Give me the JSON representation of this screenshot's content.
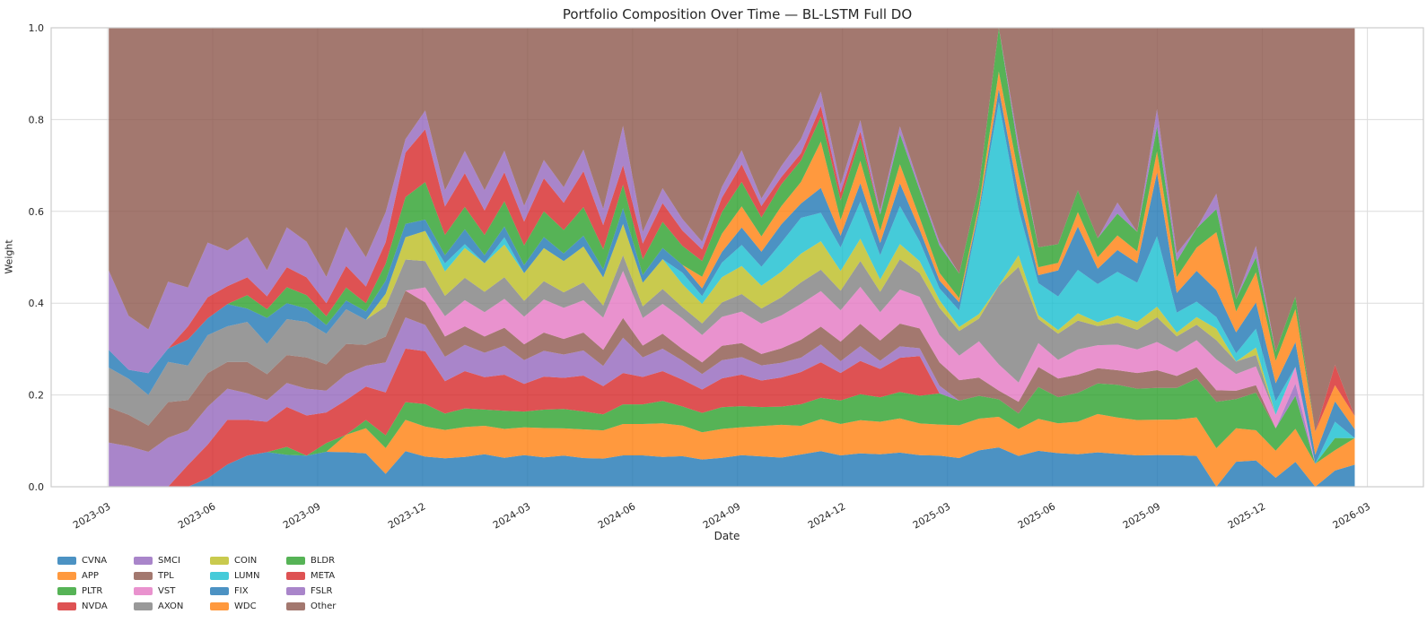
{
  "figure": {
    "title": "Portfolio Composition Over Time — BL-LSTM Full DO",
    "background_color": "#ffffff",
    "grid_color": "#dcdcdc",
    "spine_color": "#cccccc",
    "text_color": "#262626"
  },
  "chart_data": {
    "type": "area",
    "stacked": true,
    "stacked_total": 1.0,
    "title": "Portfolio Composition Over Time — BL-LSTM Full DO",
    "xlabel": "Date",
    "ylabel": "Weight",
    "grid": true,
    "legend_position": "below-left",
    "fill_alpha": 0.8,
    "ylim": [
      0.0,
      1.0
    ],
    "y_ticks": [
      "0.0",
      "0.2",
      "0.4",
      "0.6",
      "0.8",
      "1.0"
    ],
    "x_tick_labels": [
      "2023-03",
      "2023-06",
      "2023-09",
      "2023-12",
      "2024-03",
      "2024-06",
      "2024-09",
      "2024-12",
      "2025-03",
      "2025-06",
      "2025-09",
      "2025-12",
      "2026-03"
    ],
    "x_range": {
      "start": "2023-03",
      "end": "2026-02",
      "points": 64,
      "frequency": "approx. 2.5 weeks"
    },
    "series": [
      {
        "name": "CVNA",
        "color": "#1f77b4",
        "values": [
          0,
          0,
          0,
          0,
          0,
          0.02,
          0.05,
          0.07,
          0.08,
          0.08,
          0.07,
          0.08,
          0.08,
          0.08,
          0.03,
          0.08,
          0.08,
          0.07,
          0.08,
          0.08,
          0.08,
          0.08,
          0.08,
          0.08,
          0.08,
          0.07,
          0.08,
          0.08,
          0.08,
          0.08,
          0.07,
          0.08,
          0.09,
          0.08,
          0.08,
          0.09,
          0.1,
          0.08,
          0.09,
          0.08,
          0.09,
          0.08,
          0.08,
          0.07,
          0.08,
          0.09,
          0.08,
          0.09,
          0.09,
          0.09,
          0.09,
          0.09,
          0.08,
          0.09,
          0.08,
          0.08,
          0,
          0.06,
          0.07,
          0.02,
          0.06,
          0,
          0.04,
          0.05
        ]
      },
      {
        "name": "APP",
        "color": "#ff7f0e",
        "values": [
          0,
          0,
          0,
          0,
          0,
          0,
          0,
          0,
          0,
          0,
          0,
          0,
          0.04,
          0.06,
          0.06,
          0.07,
          0.08,
          0.07,
          0.08,
          0.07,
          0.08,
          0.07,
          0.08,
          0.07,
          0.08,
          0.07,
          0.08,
          0.08,
          0.09,
          0.08,
          0.07,
          0.08,
          0.08,
          0.08,
          0.09,
          0.08,
          0.09,
          0.08,
          0.09,
          0.08,
          0.09,
          0.08,
          0.08,
          0.08,
          0.07,
          0.07,
          0.07,
          0.08,
          0.08,
          0.09,
          0.1,
          0.1,
          0.09,
          0.1,
          0.09,
          0.1,
          0.1,
          0.08,
          0.08,
          0.06,
          0.08,
          0.05,
          0.05,
          0.06
        ]
      },
      {
        "name": "PLTR",
        "color": "#2ca02c",
        "values": [
          0,
          0,
          0,
          0,
          0,
          0,
          0,
          0,
          0,
          0.02,
          0,
          0.02,
          0,
          0.02,
          0.03,
          0.04,
          0.06,
          0.04,
          0.05,
          0.04,
          0.05,
          0.04,
          0.05,
          0.05,
          0.05,
          0.04,
          0.05,
          0.05,
          0.06,
          0.05,
          0.05,
          0.06,
          0.06,
          0.05,
          0.05,
          0.06,
          0.06,
          0.06,
          0.07,
          0.06,
          0.07,
          0.07,
          0.08,
          0.06,
          0.05,
          0.04,
          0.04,
          0.08,
          0.07,
          0.08,
          0.08,
          0.09,
          0.08,
          0.09,
          0.08,
          0.1,
          0.12,
          0.07,
          0.1,
          0.05,
          0.08,
          0,
          0.03,
          0
        ]
      },
      {
        "name": "NVDA",
        "color": "#d62728",
        "values": [
          0,
          0,
          0,
          0,
          0.05,
          0.08,
          0.1,
          0.08,
          0.07,
          0.1,
          0.09,
          0.07,
          0.08,
          0.08,
          0.1,
          0.12,
          0.14,
          0.08,
          0.1,
          0.08,
          0.1,
          0.07,
          0.09,
          0.08,
          0.1,
          0.07,
          0.08,
          0.07,
          0.08,
          0.07,
          0.06,
          0.08,
          0.09,
          0.07,
          0.08,
          0.09,
          0.1,
          0.07,
          0.09,
          0.07,
          0.09,
          0.1,
          0,
          0,
          0,
          0,
          0,
          0,
          0,
          0,
          0,
          0,
          0,
          0,
          0,
          0,
          0,
          0,
          0,
          0,
          0,
          0,
          0,
          0
        ]
      },
      {
        "name": "SMCI",
        "color": "#9467bd",
        "values": [
          0.1,
          0.09,
          0.08,
          0.11,
          0.08,
          0.09,
          0.07,
          0.06,
          0.05,
          0.06,
          0.06,
          0.05,
          0.06,
          0.05,
          0.07,
          0.07,
          0.07,
          0.06,
          0.07,
          0.06,
          0.08,
          0.06,
          0.07,
          0.06,
          0.07,
          0.05,
          0.09,
          0.05,
          0.06,
          0.05,
          0.04,
          0.05,
          0.05,
          0.04,
          0.04,
          0.04,
          0.05,
          0.03,
          0.04,
          0.02,
          0.03,
          0.02,
          0.02,
          0,
          0,
          0,
          0,
          0,
          0,
          0,
          0,
          0,
          0,
          0,
          0,
          0,
          0,
          0,
          0,
          0,
          0.03,
          0,
          0,
          0
        ]
      },
      {
        "name": "TPL",
        "color": "#8c564b",
        "values": [
          0.08,
          0.07,
          0.06,
          0.08,
          0.07,
          0.08,
          0.06,
          0.07,
          0.06,
          0.07,
          0.07,
          0.06,
          0.07,
          0.05,
          0.06,
          0.06,
          0.06,
          0.05,
          0.05,
          0.04,
          0.05,
          0.04,
          0.05,
          0.04,
          0.05,
          0.04,
          0.05,
          0.03,
          0.04,
          0.03,
          0.03,
          0.04,
          0.04,
          0.03,
          0.04,
          0.05,
          0.05,
          0.05,
          0.06,
          0.05,
          0.06,
          0.05,
          0.06,
          0.05,
          0.04,
          0.02,
          0.03,
          0.05,
          0.05,
          0.05,
          0.04,
          0.04,
          0.04,
          0.05,
          0.03,
          0.03,
          0.03,
          0.02,
          0.02,
          0,
          0,
          0,
          0,
          0
        ]
      },
      {
        "name": "VST",
        "color": "#e377c2",
        "values": [
          0,
          0,
          0,
          0,
          0,
          0,
          0,
          0,
          0,
          0,
          0,
          0,
          0,
          0,
          0,
          0,
          0.04,
          0.05,
          0.07,
          0.06,
          0.08,
          0.07,
          0.09,
          0.08,
          0.09,
          0.08,
          0.12,
          0.07,
          0.08,
          0.08,
          0.07,
          0.08,
          0.09,
          0.08,
          0.09,
          0.1,
          0.1,
          0.08,
          0.1,
          0.07,
          0.09,
          0.08,
          0.07,
          0.06,
          0.08,
          0.06,
          0.05,
          0.06,
          0.05,
          0.07,
          0.06,
          0.07,
          0.06,
          0.08,
          0.06,
          0.07,
          0.08,
          0.04,
          0.05,
          0.03,
          0.04,
          0,
          0,
          0
        ]
      },
      {
        "name": "AXON",
        "color": "#7f7f7f",
        "values": [
          0.09,
          0.08,
          0.07,
          0.09,
          0.08,
          0.09,
          0.08,
          0.09,
          0.07,
          0.09,
          0.08,
          0.07,
          0.08,
          0.06,
          0.07,
          0.07,
          0.07,
          0.05,
          0.06,
          0.05,
          0.06,
          0.04,
          0.05,
          0.04,
          0.05,
          0.03,
          0.04,
          0.03,
          0.04,
          0.03,
          0.03,
          0.04,
          0.05,
          0.04,
          0.05,
          0.06,
          0.06,
          0.05,
          0.07,
          0.05,
          0.08,
          0.06,
          0.07,
          0.06,
          0.05,
          0.18,
          0.3,
          0.06,
          0.07,
          0.08,
          0.05,
          0.06,
          0.05,
          0.07,
          0.04,
          0.04,
          0.05,
          0.03,
          0.03,
          0,
          0,
          0,
          0,
          0
        ]
      },
      {
        "name": "COIN",
        "color": "#bcbd22",
        "values": [
          0,
          0,
          0,
          0,
          0,
          0,
          0,
          0,
          0,
          0,
          0,
          0,
          0,
          0,
          0.03,
          0.05,
          0.08,
          0.06,
          0.08,
          0.07,
          0.09,
          0.07,
          0.09,
          0.08,
          0.1,
          0.07,
          0.08,
          0.06,
          0.08,
          0.06,
          0.05,
          0.07,
          0.08,
          0.06,
          0.07,
          0.08,
          0.08,
          0.05,
          0.06,
          0.03,
          0.04,
          0.03,
          0.02,
          0.01,
          0.01,
          0,
          0.03,
          0.01,
          0.01,
          0.02,
          0.01,
          0.02,
          0.02,
          0.03,
          0.01,
          0.02,
          0.03,
          0,
          0.02,
          0,
          0,
          0,
          0,
          0
        ]
      },
      {
        "name": "LUMN",
        "color": "#17becf",
        "values": [
          0,
          0,
          0,
          0,
          0,
          0,
          0,
          0,
          0,
          0,
          0,
          0,
          0,
          0,
          0,
          0,
          0,
          0.02,
          0.01,
          0,
          0.02,
          0,
          0,
          0,
          0,
          0,
          0,
          0,
          0,
          0.03,
          0.02,
          0.04,
          0.06,
          0.05,
          0.08,
          0.1,
          0.08,
          0.06,
          0.1,
          0.06,
          0.1,
          0.05,
          0.03,
          0.04,
          0.22,
          0.42,
          0.12,
          0.08,
          0.09,
          0.12,
          0.1,
          0.12,
          0.1,
          0.2,
          0.05,
          0.04,
          0.03,
          0.02,
          0.05,
          0.03,
          0,
          0,
          0.04,
          0
        ]
      },
      {
        "name": "FIX",
        "color": "#1f77b4",
        "values": [
          0.04,
          0.02,
          0.05,
          0.03,
          0.06,
          0.04,
          0.05,
          0.03,
          0.06,
          0.04,
          0.03,
          0.02,
          0.02,
          0.02,
          0.03,
          0.03,
          0.03,
          0.02,
          0.04,
          0.02,
          0.03,
          0.02,
          0.03,
          0.02,
          0.03,
          0.02,
          0.04,
          0.02,
          0.03,
          0.02,
          0.02,
          0.03,
          0.05,
          0.04,
          0.05,
          0.04,
          0.07,
          0.03,
          0.05,
          0.03,
          0.06,
          0.03,
          0.02,
          0.02,
          0.01,
          0.03,
          0.04,
          0.02,
          0.07,
          0.12,
          0.04,
          0.06,
          0.05,
          0.18,
          0.05,
          0.08,
          0.07,
          0.05,
          0.07,
          0.04,
          0.06,
          0.02,
          0.05,
          0.02
        ]
      },
      {
        "name": "WDC",
        "color": "#ff7f0e",
        "values": [
          0,
          0,
          0,
          0,
          0,
          0,
          0,
          0,
          0,
          0,
          0,
          0,
          0,
          0,
          0,
          0,
          0,
          0,
          0,
          0,
          0,
          0,
          0,
          0,
          0,
          0,
          0,
          0,
          0,
          0,
          0.03,
          0.05,
          0.06,
          0.04,
          0.05,
          0.06,
          0.13,
          0.04,
          0.06,
          0.03,
          0.05,
          0.03,
          0.02,
          0.01,
          0.01,
          0.04,
          0.05,
          0.02,
          0.02,
          0.04,
          0.03,
          0.04,
          0.03,
          0.06,
          0.04,
          0.06,
          0.15,
          0.05,
          0.08,
          0.05,
          0.08,
          0.05,
          0.04,
          0.03
        ]
      },
      {
        "name": "BLDR",
        "color": "#2ca02c",
        "values": [
          0,
          0,
          0,
          0,
          0,
          0,
          0,
          0.03,
          0.02,
          0.04,
          0.03,
          0.02,
          0.03,
          0.02,
          0.04,
          0.06,
          0.1,
          0.05,
          0.06,
          0.05,
          0.07,
          0.05,
          0.07,
          0.06,
          0.08,
          0.05,
          0.06,
          0.04,
          0.07,
          0.05,
          0.04,
          0.06,
          0.07,
          0.05,
          0.06,
          0.06,
          0.07,
          0.05,
          0.06,
          0.04,
          0.08,
          0.07,
          0.07,
          0.06,
          0.04,
          0.1,
          0.06,
          0.05,
          0.05,
          0.06,
          0.05,
          0.06,
          0.05,
          0.07,
          0.04,
          0.05,
          0.06,
          0.03,
          0.04,
          0.02,
          0.03,
          0,
          0,
          0
        ]
      },
      {
        "name": "META",
        "color": "#d62728",
        "values": [
          0,
          0,
          0,
          0,
          0.03,
          0.05,
          0.04,
          0.04,
          0.03,
          0.05,
          0.04,
          0.03,
          0.05,
          0.04,
          0.05,
          0.1,
          0.14,
          0.07,
          0.09,
          0.06,
          0.08,
          0.06,
          0.09,
          0.07,
          0.1,
          0.06,
          0.05,
          0.04,
          0.05,
          0.04,
          0.03,
          0.04,
          0.05,
          0.03,
          0.02,
          0.02,
          0.03,
          0.02,
          0.02,
          0,
          0,
          0,
          0,
          0,
          0,
          0,
          0,
          0,
          0,
          0,
          0,
          0,
          0,
          0,
          0,
          0,
          0,
          0,
          0,
          0,
          0,
          0,
          0.05,
          0
        ]
      },
      {
        "name": "FSLR",
        "color": "#9467bd",
        "values": [
          0.18,
          0.12,
          0.1,
          0.15,
          0.09,
          0.13,
          0.08,
          0.09,
          0.06,
          0.1,
          0.08,
          0.06,
          0.09,
          0.07,
          0.07,
          0.03,
          0.05,
          0.04,
          0.06,
          0.05,
          0.06,
          0.04,
          0.05,
          0.04,
          0.06,
          0.04,
          0.1,
          0.03,
          0.04,
          0.03,
          0.02,
          0.03,
          0.04,
          0.02,
          0.03,
          0.04,
          0.04,
          0.02,
          0.03,
          0.01,
          0.02,
          0.01,
          0.01,
          0,
          0,
          0,
          0.02,
          0,
          0,
          0,
          0,
          0.03,
          0,
          0.05,
          0.02,
          0,
          0.04,
          0,
          0.03,
          0,
          0,
          0,
          0,
          0
        ]
      },
      {
        "name": "Other",
        "color": "#8c564b",
        "values": [
          0.55,
          0.64,
          0.69,
          0.57,
          0.6,
          0.51,
          0.5,
          0.47,
          0.56,
          0.5,
          0.48,
          0.57,
          0.46,
          0.55,
          0.43,
          0.25,
          0.22,
          0.4,
          0.33,
          0.4,
          0.34,
          0.45,
          0.36,
          0.41,
          0.34,
          0.45,
          0.25,
          0.52,
          0.43,
          0.5,
          0.55,
          0.44,
          0.35,
          0.45,
          0.38,
          0.31,
          0.18,
          0.4,
          0.25,
          0.45,
          0.26,
          0.4,
          0.55,
          0.6,
          0.35,
          0,
          0.3,
          0.55,
          0.58,
          0.45,
          0.55,
          0.48,
          0.52,
          0.23,
          0.57,
          0.52,
          0.43,
          0.65,
          0.58,
          0.72,
          0.65,
          0.88,
          0.83,
          0.88
        ]
      }
    ]
  }
}
